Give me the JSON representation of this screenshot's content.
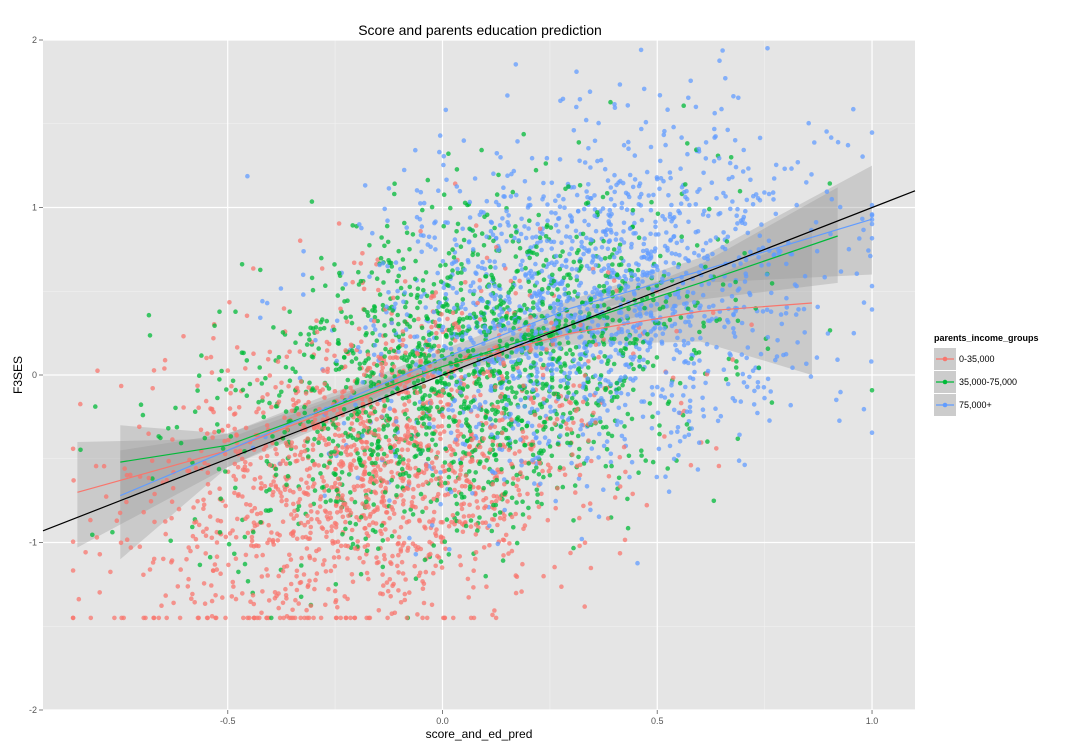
{
  "chart_data": {
    "type": "scatter",
    "title": "Score and parents education prediction",
    "xlabel": "score_and_ed_pred",
    "ylabel": "F3SES",
    "xlim": [
      -0.93,
      1.1
    ],
    "ylim": [
      -2,
      2
    ],
    "x_ticks": [
      -0.5,
      0.0,
      0.5,
      1.0
    ],
    "x_tick_labels": [
      "-0.5",
      "0.0",
      "0.5",
      "1.0"
    ],
    "y_ticks": [
      -2,
      -1,
      0,
      1,
      2
    ],
    "y_tick_labels": [
      "-2",
      "-1",
      "0",
      "1",
      "2"
    ],
    "grid": true,
    "legend": {
      "title": "parents_income_groups",
      "placement": "right"
    },
    "series": [
      {
        "name": "0-35,000",
        "color": "#F8766D",
        "points_per_series": 1600,
        "cluster_center": [
          -0.15,
          -0.55
        ],
        "fit_line": [
          [
            -0.85,
            -0.7
          ],
          [
            -0.5,
            -0.45
          ],
          [
            0.0,
            0.05
          ],
          [
            0.3,
            0.25
          ],
          [
            0.6,
            0.38
          ],
          [
            0.86,
            0.43
          ]
        ],
        "ci_band_upper": [
          [
            -0.85,
            -0.4
          ],
          [
            -0.5,
            -0.38
          ],
          [
            0.0,
            0.1
          ],
          [
            0.3,
            0.32
          ],
          [
            0.6,
            0.55
          ],
          [
            0.86,
            0.85
          ]
        ],
        "ci_band_lower": [
          [
            -0.85,
            -1.03
          ],
          [
            -0.5,
            -0.55
          ],
          [
            0.0,
            0.0
          ],
          [
            0.3,
            0.18
          ],
          [
            0.6,
            0.2
          ],
          [
            0.86,
            -0.0
          ]
        ]
      },
      {
        "name": "35,000-75,000",
        "color": "#00BA38",
        "points_per_series": 1600,
        "cluster_center": [
          0.05,
          0.0
        ],
        "fit_line": [
          [
            -0.75,
            -0.52
          ],
          [
            -0.5,
            -0.42
          ],
          [
            0.0,
            0.05
          ],
          [
            0.3,
            0.3
          ],
          [
            0.6,
            0.55
          ],
          [
            0.92,
            0.83
          ]
        ],
        "ci_band_upper": [
          [
            -0.75,
            -0.3
          ],
          [
            -0.5,
            -0.35
          ],
          [
            0.0,
            0.1
          ],
          [
            0.3,
            0.36
          ],
          [
            0.6,
            0.66
          ],
          [
            0.92,
            1.12
          ]
        ],
        "ci_band_lower": [
          [
            -0.75,
            -0.75
          ],
          [
            -0.5,
            -0.5
          ],
          [
            0.0,
            0.0
          ],
          [
            0.3,
            0.24
          ],
          [
            0.6,
            0.45
          ],
          [
            0.92,
            0.55
          ]
        ]
      },
      {
        "name": "75,000+",
        "color": "#619CFF",
        "points_per_series": 1600,
        "cluster_center": [
          0.35,
          0.45
        ],
        "fit_line": [
          [
            -0.75,
            -0.72
          ],
          [
            -0.5,
            -0.45
          ],
          [
            0.0,
            0.1
          ],
          [
            0.3,
            0.4
          ],
          [
            0.6,
            0.62
          ],
          [
            1.0,
            0.93
          ]
        ],
        "ci_band_upper": [
          [
            -0.75,
            -0.45
          ],
          [
            -0.5,
            -0.35
          ],
          [
            0.0,
            0.15
          ],
          [
            0.3,
            0.45
          ],
          [
            0.6,
            0.7
          ],
          [
            1.0,
            1.25
          ]
        ],
        "ci_band_lower": [
          [
            -0.75,
            -1.1
          ],
          [
            -0.5,
            -0.55
          ],
          [
            0.0,
            0.05
          ],
          [
            0.3,
            0.35
          ],
          [
            0.6,
            0.55
          ],
          [
            1.0,
            0.6
          ]
        ]
      }
    ],
    "reference_line": {
      "color": "#000000",
      "points": [
        [
          -0.93,
          -0.93
        ],
        [
          1.1,
          1.1
        ]
      ]
    }
  }
}
